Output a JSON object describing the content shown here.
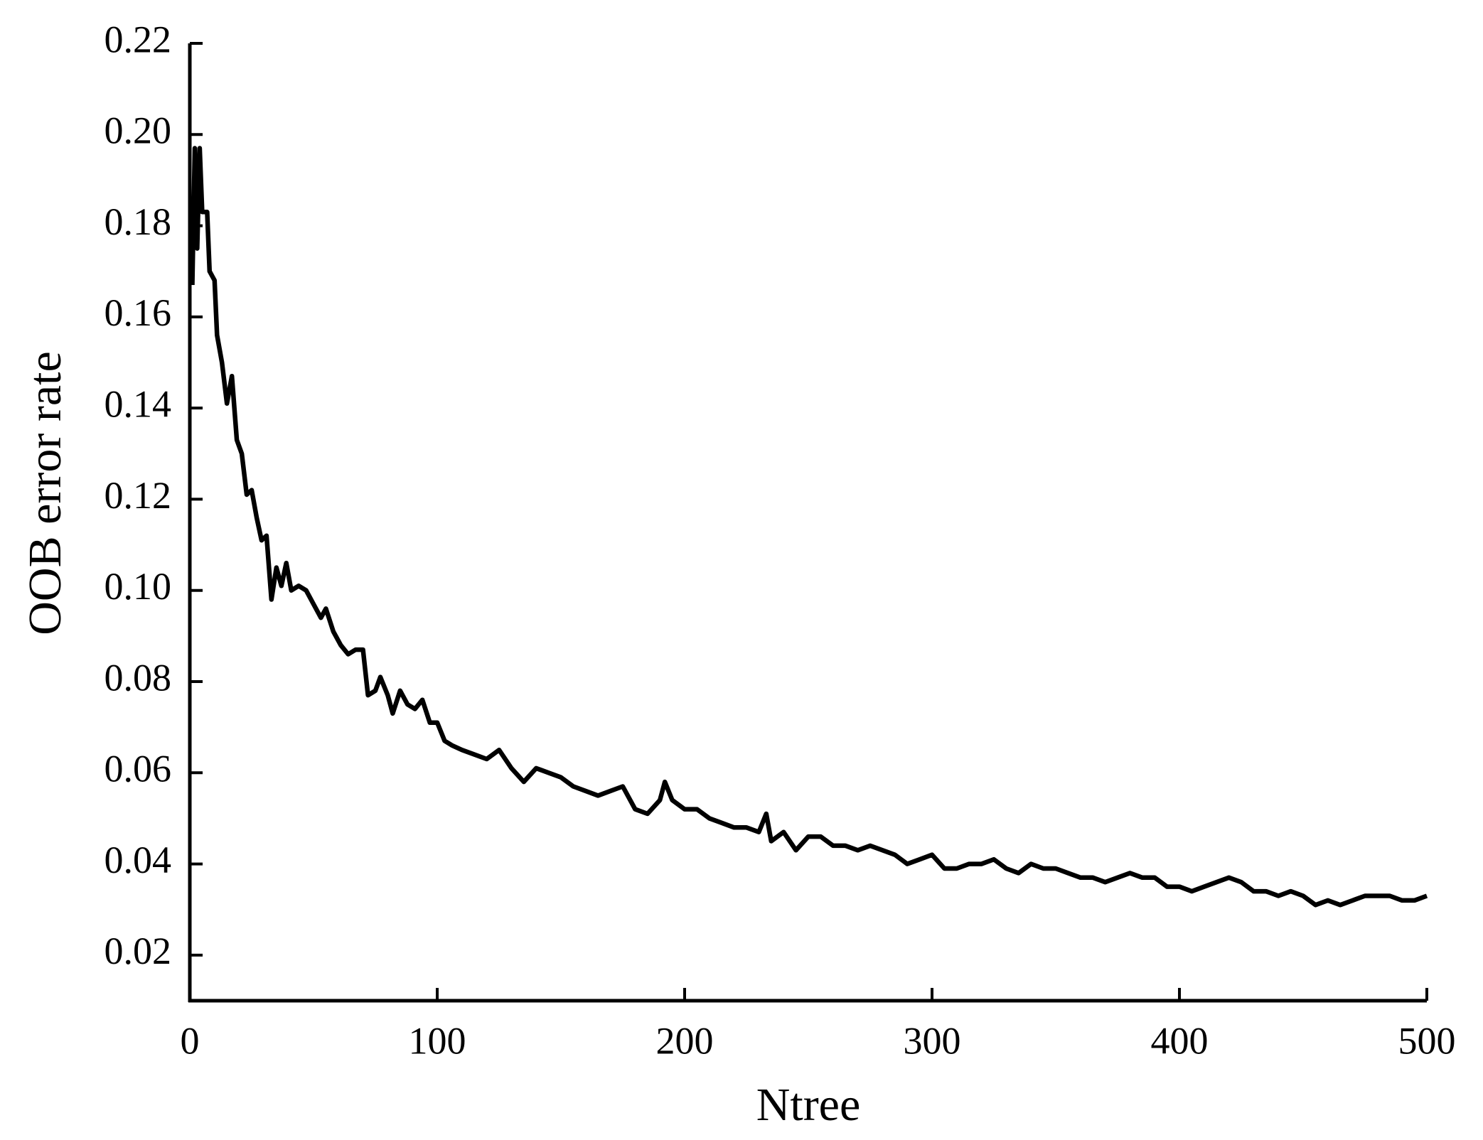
{
  "chart_data": {
    "type": "line",
    "x_label": "Ntree",
    "y_label": "OOB error rate",
    "xlim": [
      0,
      500
    ],
    "ylim": [
      0.01,
      0.22
    ],
    "xticks": [
      0,
      100,
      200,
      300,
      400,
      500
    ],
    "yticks": [
      0.02,
      0.04,
      0.06,
      0.08,
      {
        "value": 0.1,
        "label": "0.10"
      },
      0.12,
      0.14,
      0.16,
      0.18,
      {
        "value": 0.2,
        "label": "0.20"
      },
      0.22
    ],
    "series": [
      {
        "name": "OOB error rate",
        "color": "#000000",
        "x": [
          1,
          2,
          3,
          4,
          5,
          7,
          8,
          10,
          11,
          13,
          15,
          17,
          19,
          21,
          23,
          25,
          27,
          29,
          31,
          33,
          35,
          37,
          39,
          41,
          44,
          47,
          50,
          53,
          55,
          58,
          61,
          64,
          67,
          70,
          72,
          75,
          77,
          80,
          82,
          85,
          88,
          91,
          94,
          97,
          100,
          103,
          106,
          110,
          115,
          120,
          125,
          130,
          135,
          140,
          145,
          150,
          155,
          160,
          165,
          170,
          175,
          180,
          185,
          190,
          192,
          195,
          200,
          205,
          210,
          215,
          220,
          225,
          230,
          233,
          235,
          240,
          245,
          250,
          255,
          260,
          265,
          270,
          275,
          280,
          285,
          290,
          295,
          300,
          305,
          310,
          315,
          320,
          325,
          330,
          335,
          340,
          345,
          350,
          355,
          360,
          365,
          370,
          375,
          380,
          385,
          390,
          395,
          400,
          405,
          410,
          415,
          420,
          425,
          430,
          435,
          440,
          445,
          450,
          455,
          460,
          465,
          470,
          475,
          480,
          485,
          490,
          495,
          500
        ],
        "values": [
          0.167,
          0.197,
          0.175,
          0.197,
          0.183,
          0.183,
          0.17,
          0.168,
          0.156,
          0.15,
          0.141,
          0.147,
          0.133,
          0.13,
          0.121,
          0.122,
          0.116,
          0.111,
          0.112,
          0.098,
          0.105,
          0.101,
          0.106,
          0.1,
          0.101,
          0.1,
          0.097,
          0.094,
          0.096,
          0.091,
          0.088,
          0.086,
          0.087,
          0.087,
          0.077,
          0.078,
          0.081,
          0.077,
          0.073,
          0.078,
          0.075,
          0.074,
          0.076,
          0.071,
          0.071,
          0.067,
          0.066,
          0.065,
          0.064,
          0.063,
          0.065,
          0.061,
          0.058,
          0.061,
          0.06,
          0.059,
          0.057,
          0.056,
          0.055,
          0.056,
          0.057,
          0.052,
          0.051,
          0.054,
          0.058,
          0.054,
          0.052,
          0.052,
          0.05,
          0.049,
          0.048,
          0.048,
          0.047,
          0.051,
          0.045,
          0.047,
          0.043,
          0.046,
          0.046,
          0.044,
          0.044,
          0.043,
          0.044,
          0.043,
          0.042,
          0.04,
          0.041,
          0.042,
          0.039,
          0.039,
          0.04,
          0.04,
          0.041,
          0.039,
          0.038,
          0.04,
          0.039,
          0.039,
          0.038,
          0.037,
          0.037,
          0.036,
          0.037,
          0.038,
          0.037,
          0.037,
          0.035,
          0.035,
          0.034,
          0.035,
          0.036,
          0.037,
          0.036,
          0.034,
          0.034,
          0.033,
          0.034,
          0.033,
          0.031,
          0.032,
          0.031,
          0.032,
          0.033,
          0.033,
          0.033,
          0.032,
          0.032,
          0.033
        ]
      }
    ]
  }
}
